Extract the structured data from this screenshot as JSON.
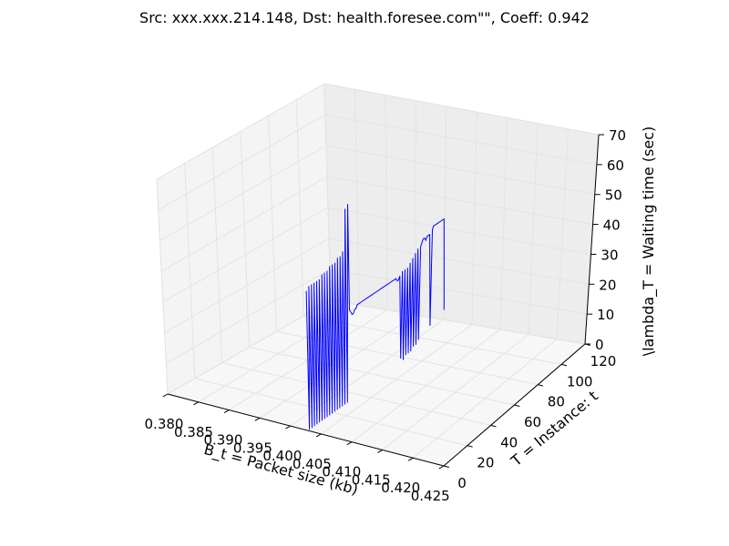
{
  "chart_data": {
    "type": "line",
    "projection": "3d",
    "title": "Src: xxx.xxx.214.148, Dst: health.foresee.com\"\", Coeff: 0.942",
    "xlabel": "B_t = Packet size (kb)",
    "ylabel": "T = Instance: t",
    "zlabel": "\\lambda_T = Waiting time (sec)",
    "xlim": [
      0.38,
      0.425
    ],
    "ylim": [
      0,
      120
    ],
    "zlim": [
      0,
      70
    ],
    "x_ticks": [
      "0.380",
      "0.385",
      "0.390",
      "0.395",
      "0.400",
      "0.405",
      "0.410",
      "0.415",
      "0.420",
      "0.425"
    ],
    "y_ticks": [
      "0",
      "20",
      "40",
      "60",
      "80",
      "100",
      "120"
    ],
    "z_ticks": [
      "0",
      "10",
      "20",
      "30",
      "40",
      "50",
      "60",
      "70"
    ],
    "grid": true,
    "line_color": "#0000ff",
    "series": [
      {
        "x": [
          0.4029,
          0.4029,
          0.4029,
          0.4029,
          0.4029,
          0.4029,
          0.4029,
          0.4029,
          0.4029,
          0.4029,
          0.4029,
          0.4029,
          0.4029,
          0.4029,
          0.4029,
          0.4029,
          0.4029,
          0.4029,
          0.4029,
          0.4029,
          0.4029,
          0.4029,
          0.4029,
          0.4029,
          0.4029,
          0.4029,
          0.4029,
          0.4029,
          0.4029,
          0.4029,
          0.4029,
          0.4029,
          0.4029,
          0.4029,
          0.4029,
          0.4029,
          0.4029,
          0.4029,
          0.4029,
          0.4029,
          0.4029,
          0.4029,
          0.4029,
          0.4029,
          0.4029,
          0.4029,
          0.4029,
          0.4029,
          0.4029,
          0.4029,
          0.4029,
          0.4029,
          0.4029,
          0.4029,
          0.4029,
          0.4029,
          0.4029,
          0.4029,
          0.4029,
          0.4029,
          0.4029,
          0.4029,
          0.4029,
          0.4029,
          0.4029,
          0.4029,
          0.4029,
          0.4029,
          0.4029,
          0.4029,
          0.4029,
          0.4029,
          0.4029,
          0.4029,
          0.4029,
          0.4029,
          0.4029,
          0.4029,
          0.4029,
          0.4029,
          0.4029,
          0.4029,
          0.4029,
          0.4029,
          0.4029,
          0.4029,
          0.4029,
          0.4029,
          0.4029,
          0.4029,
          0.4029,
          0.4029,
          0.4029,
          0.4029,
          0.4029,
          0.4029,
          0.4029,
          0.4029,
          0.4029,
          0.4029,
          0.4029,
          0.4029,
          0.4029,
          0.4029,
          0.4029,
          0.4029,
          0.4029,
          0.4029
        ],
        "y": [
          0,
          1,
          2,
          3,
          4,
          5,
          6,
          7,
          8,
          9,
          10,
          11,
          12,
          13,
          14,
          15,
          16,
          17,
          18,
          19,
          20,
          21,
          22,
          23,
          24,
          25,
          26,
          27,
          28,
          29,
          30,
          31,
          32,
          33,
          34,
          35,
          36,
          37,
          38,
          39,
          40,
          41,
          42,
          43,
          44,
          45,
          46,
          47,
          48,
          49,
          50,
          51,
          52,
          53,
          54,
          55,
          56,
          57,
          58,
          59,
          60,
          61,
          62,
          63,
          64,
          65,
          66,
          67,
          68,
          69,
          70,
          71,
          72,
          73,
          74,
          75,
          76,
          77,
          78,
          79,
          80,
          81,
          82,
          83,
          84,
          85,
          86,
          87,
          88,
          89,
          90,
          91,
          92,
          93,
          94,
          95,
          96,
          97,
          98,
          99,
          100,
          101,
          102,
          103,
          104,
          105,
          106,
          107
        ],
        "z": [
          44,
          0,
          45,
          0,
          45,
          0,
          45,
          0,
          45,
          0,
          45,
          0,
          46,
          0,
          46,
          0,
          46,
          0,
          47,
          0,
          47,
          0,
          47,
          0,
          48,
          0,
          48,
          0,
          49,
          0,
          62,
          0,
          63,
          29,
          28,
          27,
          27,
          28,
          28,
          29,
          29,
          29,
          29,
          29,
          29,
          29,
          29,
          29,
          29,
          29,
          29,
          29,
          29,
          29,
          29,
          29,
          29,
          29,
          29,
          29,
          29,
          29,
          29,
          29,
          29,
          29,
          29,
          29,
          29,
          29,
          28,
          28,
          29,
          2,
          30,
          1,
          30,
          2,
          30,
          2,
          31,
          2,
          32,
          3,
          33,
          3,
          34,
          4,
          34,
          35,
          36,
          36,
          35,
          36,
          36,
          36,
          6,
          37,
          38,
          38,
          38,
          38,
          38,
          38,
          38,
          38,
          38,
          8
        ]
      }
    ]
  }
}
